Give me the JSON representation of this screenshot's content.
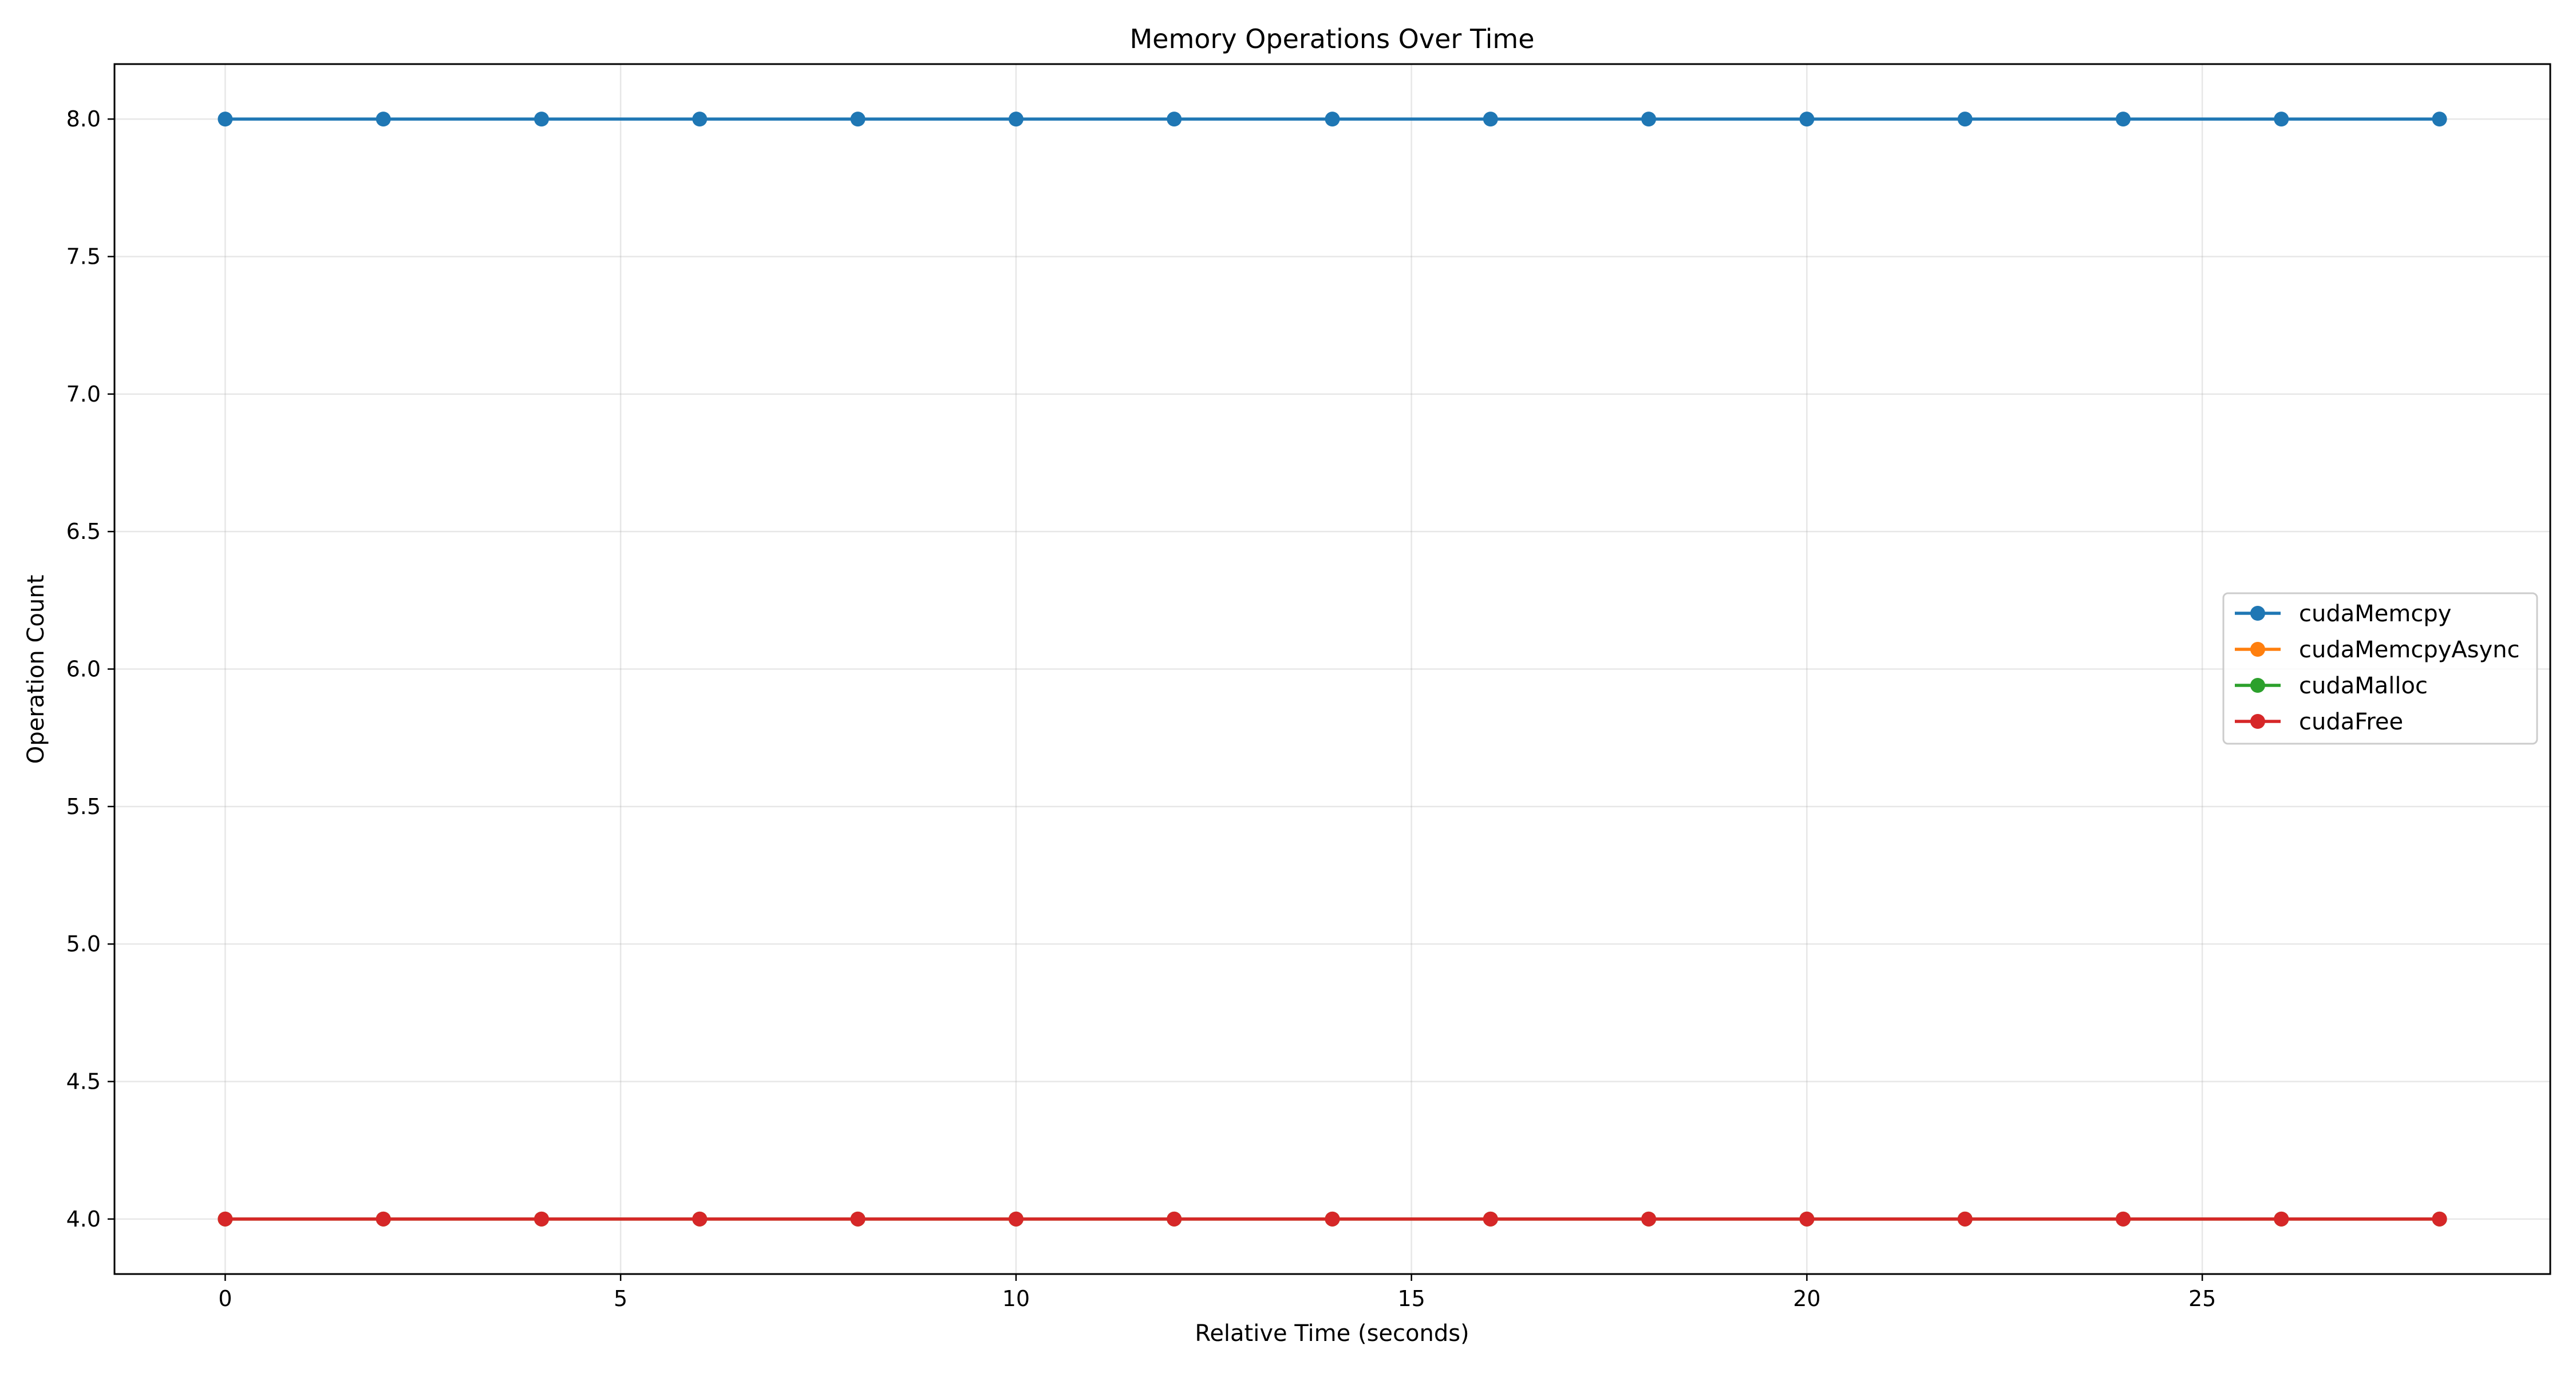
{
  "chart_data": {
    "type": "line",
    "title": "Memory Operations Over Time",
    "xlabel": "Relative Time (seconds)",
    "ylabel": "Operation Count",
    "xlim": [
      -1.4,
      29.4
    ],
    "ylim": [
      3.8,
      8.2
    ],
    "xticks": [
      0,
      5,
      10,
      15,
      20,
      25
    ],
    "yticks": [
      4.0,
      4.5,
      5.0,
      5.5,
      6.0,
      6.5,
      7.0,
      7.5,
      8.0
    ],
    "xtick_labels": [
      "0",
      "5",
      "10",
      "15",
      "20",
      "25"
    ],
    "ytick_labels": [
      "4.0",
      "4.5",
      "5.0",
      "5.5",
      "6.0",
      "6.5",
      "7.0",
      "7.5",
      "8.0"
    ],
    "grid": true,
    "legend_position": "center-right",
    "x": [
      0,
      2,
      4,
      6,
      8,
      10,
      12,
      14,
      16,
      18,
      20,
      22,
      24,
      26,
      28
    ],
    "series": [
      {
        "name": "cudaMemcpy",
        "color": "#1f77b4",
        "marker": "circle",
        "values": [
          8,
          8,
          8,
          8,
          8,
          8,
          8,
          8,
          8,
          8,
          8,
          8,
          8,
          8,
          8
        ]
      },
      {
        "name": "cudaMemcpyAsync",
        "color": "#ff7f0e",
        "marker": "circle",
        "values": [
          4,
          4,
          4,
          4,
          4,
          4,
          4,
          4,
          4,
          4,
          4,
          4,
          4,
          4,
          4
        ]
      },
      {
        "name": "cudaMalloc",
        "color": "#2ca02c",
        "marker": "circle",
        "values": [
          4,
          4,
          4,
          4,
          4,
          4,
          4,
          4,
          4,
          4,
          4,
          4,
          4,
          4,
          4
        ]
      },
      {
        "name": "cudaFree",
        "color": "#d62728",
        "marker": "circle",
        "values": [
          4,
          4,
          4,
          4,
          4,
          4,
          4,
          4,
          4,
          4,
          4,
          4,
          4,
          4,
          4
        ]
      }
    ]
  }
}
